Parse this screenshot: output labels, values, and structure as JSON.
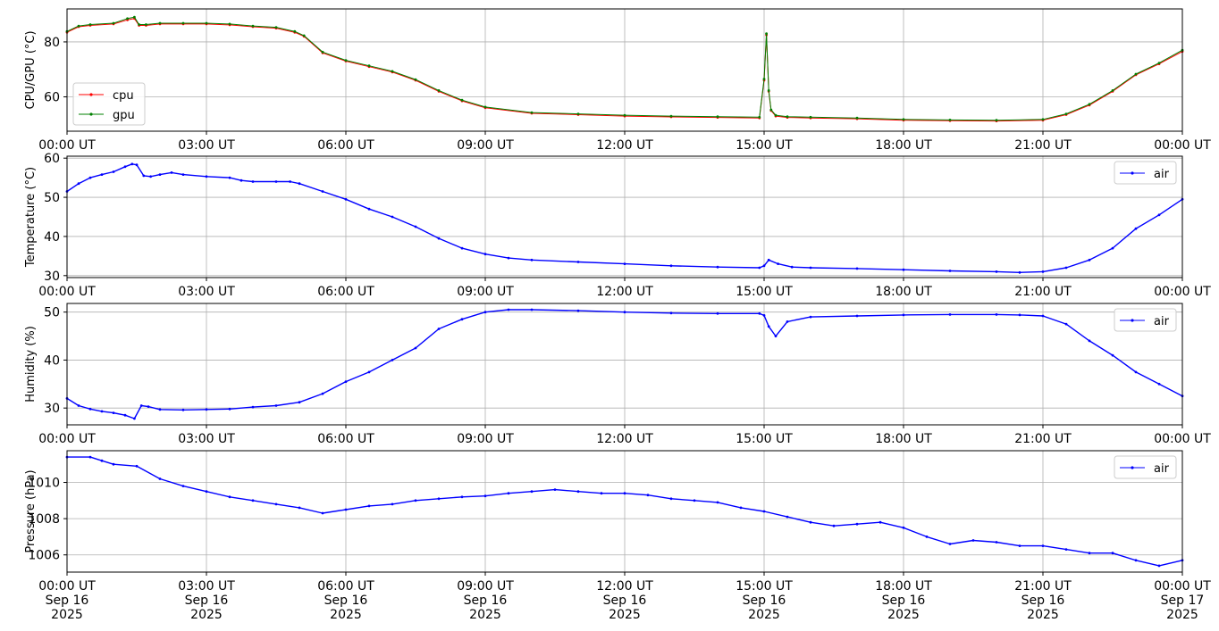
{
  "chart_data": [
    {
      "type": "line",
      "ylabel": "CPU/GPU (°C)",
      "ylim": [
        47.5,
        92
      ],
      "yticks": [
        60,
        80
      ],
      "x_range": [
        "2025-09-16 00:00 UT",
        "2025-09-17 00:00 UT"
      ],
      "xtick_labels": [
        "00:00 UT",
        "03:00 UT",
        "06:00 UT",
        "09:00 UT",
        "12:00 UT",
        "15:00 UT",
        "18:00 UT",
        "21:00 UT",
        "00:00 UT"
      ],
      "grid": true,
      "legend": "lower-left",
      "series": [
        {
          "name": "cpu",
          "color": "#ff0000",
          "x_hours": [
            0,
            0.25,
            0.5,
            1,
            1.3,
            1.45,
            1.55,
            1.7,
            2,
            2.5,
            3,
            3.5,
            4,
            4.5,
            4.9,
            5.1,
            5.5,
            6,
            6.5,
            7,
            7.5,
            8,
            8.5,
            9,
            10,
            11,
            12,
            13,
            14,
            14.9,
            15.0,
            15.05,
            15.1,
            15.15,
            15.25,
            15.5,
            16,
            17,
            18,
            19,
            20,
            21,
            21.5,
            22,
            22.5,
            23,
            23.5,
            24
          ],
          "values": [
            83.5,
            85.5,
            86,
            86.5,
            88,
            88.5,
            86,
            86,
            86.5,
            86.5,
            86.5,
            86.2,
            85.5,
            85,
            83.5,
            82,
            76,
            73,
            71,
            69,
            66,
            62,
            58.5,
            56,
            54,
            53.5,
            53,
            52.7,
            52.5,
            52.3,
            66,
            82.5,
            62,
            55,
            53,
            52.5,
            52.3,
            52,
            51.5,
            51.3,
            51.2,
            51.5,
            53.5,
            57,
            62,
            68,
            72,
            76.5
          ]
        },
        {
          "name": "gpu",
          "color": "#008000",
          "x_hours": [
            0,
            0.25,
            0.5,
            1,
            1.3,
            1.45,
            1.55,
            1.7,
            2,
            2.5,
            3,
            3.5,
            4,
            4.5,
            4.9,
            5.1,
            5.5,
            6,
            6.5,
            7,
            7.5,
            8,
            8.5,
            9,
            10,
            11,
            12,
            13,
            14,
            14.9,
            15.0,
            15.05,
            15.1,
            15.15,
            15.25,
            15.5,
            16,
            17,
            18,
            19,
            20,
            21,
            21.5,
            22,
            22.5,
            23,
            23.5,
            24
          ],
          "values": [
            83.8,
            85.8,
            86.3,
            86.8,
            88.5,
            89,
            86.3,
            86.3,
            86.8,
            86.8,
            86.8,
            86.5,
            85.8,
            85.3,
            83.8,
            82.3,
            76.3,
            73.3,
            71.3,
            69.3,
            66.3,
            62.3,
            58.8,
            56.3,
            54.3,
            53.8,
            53.3,
            53,
            52.8,
            52.6,
            66.5,
            83,
            62.3,
            55.3,
            53.3,
            52.8,
            52.6,
            52.3,
            51.8,
            51.6,
            51.5,
            51.8,
            53.8,
            57.3,
            62.3,
            68.3,
            72.3,
            77
          ]
        }
      ]
    },
    {
      "type": "line",
      "ylabel": "Temperature (°C)",
      "ylim": [
        29.5,
        60.5
      ],
      "yticks": [
        30,
        40,
        50,
        60
      ],
      "x_range": [
        "2025-09-16 00:00 UT",
        "2025-09-17 00:00 UT"
      ],
      "xtick_labels": [
        "00:00 UT",
        "03:00 UT",
        "06:00 UT",
        "09:00 UT",
        "12:00 UT",
        "15:00 UT",
        "18:00 UT",
        "21:00 UT",
        "00:00 UT"
      ],
      "grid": true,
      "legend": "upper-right",
      "series": [
        {
          "name": "air",
          "color": "#0000ff",
          "x_hours": [
            0,
            0.25,
            0.5,
            0.75,
            1,
            1.25,
            1.4,
            1.5,
            1.65,
            1.8,
            2,
            2.25,
            2.5,
            3,
            3.5,
            3.75,
            4,
            4.5,
            4.8,
            5,
            5.5,
            6,
            6.5,
            7,
            7.5,
            8,
            8.5,
            9,
            9.5,
            10,
            11,
            12,
            13,
            14,
            14.9,
            15.0,
            15.1,
            15.3,
            15.6,
            16,
            17,
            18,
            19,
            20,
            20.5,
            21,
            21.5,
            22,
            22.5,
            23,
            23.5,
            24
          ],
          "values": [
            51.5,
            53.5,
            55,
            55.8,
            56.5,
            57.8,
            58.5,
            58.3,
            55.5,
            55.3,
            55.8,
            56.3,
            55.8,
            55.3,
            55,
            54.3,
            54,
            54,
            54,
            53.5,
            51.5,
            49.5,
            47,
            45,
            42.5,
            39.5,
            37,
            35.5,
            34.5,
            34,
            33.5,
            33,
            32.5,
            32.2,
            32,
            32.5,
            34,
            33,
            32.2,
            32,
            31.8,
            31.5,
            31.2,
            31,
            30.8,
            31,
            32,
            34,
            37,
            42,
            45.5,
            49.5
          ]
        }
      ]
    },
    {
      "type": "line",
      "ylabel": "Humidity (%)",
      "ylim": [
        26.5,
        51.8
      ],
      "yticks": [
        30,
        40,
        50
      ],
      "x_range": [
        "2025-09-16 00:00 UT",
        "2025-09-17 00:00 UT"
      ],
      "xtick_labels": [
        "00:00 UT",
        "03:00 UT",
        "06:00 UT",
        "09:00 UT",
        "12:00 UT",
        "15:00 UT",
        "18:00 UT",
        "21:00 UT",
        "00:00 UT"
      ],
      "grid": true,
      "legend": "upper-right",
      "series": [
        {
          "name": "air",
          "color": "#0000ff",
          "x_hours": [
            0,
            0.25,
            0.5,
            0.75,
            1,
            1.25,
            1.45,
            1.6,
            1.75,
            2,
            2.5,
            3,
            3.5,
            4,
            4.5,
            5,
            5.5,
            6,
            6.5,
            7,
            7.5,
            8,
            8.5,
            9,
            9.5,
            10,
            11,
            12,
            13,
            14,
            14.9,
            15.0,
            15.1,
            15.25,
            15.5,
            16,
            17,
            18,
            19,
            20,
            20.5,
            21,
            21.5,
            22,
            22.5,
            23,
            23.5,
            24
          ],
          "values": [
            32,
            30.5,
            29.8,
            29.3,
            29,
            28.5,
            27.8,
            30.5,
            30.3,
            29.7,
            29.6,
            29.7,
            29.8,
            30.2,
            30.5,
            31.2,
            33,
            35.5,
            37.5,
            40,
            42.5,
            46.5,
            48.5,
            50,
            50.5,
            50.5,
            50.3,
            50,
            49.8,
            49.7,
            49.7,
            49.3,
            47,
            45,
            48,
            49,
            49.2,
            49.4,
            49.5,
            49.5,
            49.4,
            49.2,
            47.5,
            44,
            41,
            37.5,
            35,
            32.5
          ]
        }
      ]
    },
    {
      "type": "line",
      "ylabel": "Pressure (hPa)",
      "ylim": [
        1005.05,
        1011.75
      ],
      "yticks": [
        1006,
        1008,
        1010
      ],
      "x_range": [
        "2025-09-16 00:00 UT",
        "2025-09-17 00:00 UT"
      ],
      "xtick_labels": [
        "00:00 UT\nSep 16\n2025",
        "03:00 UT\nSep 16\n2025",
        "06:00 UT\nSep 16\n2025",
        "09:00 UT\nSep 16\n2025",
        "12:00 UT\nSep 16\n2025",
        "15:00 UT\nSep 16\n2025",
        "18:00 UT\nSep 16\n2025",
        "21:00 UT\nSep 16\n2025",
        "00:00 UT\nSep 17\n2025"
      ],
      "grid": true,
      "legend": "upper-right",
      "series": [
        {
          "name": "air",
          "color": "#0000ff",
          "x_hours": [
            0,
            0.5,
            0.75,
            1,
            1.5,
            2,
            2.5,
            3,
            3.5,
            4,
            4.5,
            5,
            5.5,
            6,
            6.5,
            7,
            7.5,
            8,
            8.5,
            9,
            9.5,
            10,
            10.5,
            11,
            11.5,
            12,
            12.5,
            13,
            13.5,
            14,
            14.5,
            15,
            15.5,
            16,
            16.5,
            17,
            17.5,
            18,
            18.5,
            19,
            19.5,
            20,
            20.5,
            21,
            21.5,
            22,
            22.5,
            23,
            23.5,
            24
          ],
          "values": [
            1011.4,
            1011.4,
            1011.2,
            1011,
            1010.9,
            1010.2,
            1009.8,
            1009.5,
            1009.2,
            1009,
            1008.8,
            1008.6,
            1008.3,
            1008.5,
            1008.7,
            1008.8,
            1009,
            1009.1,
            1009.2,
            1009.25,
            1009.4,
            1009.5,
            1009.6,
            1009.5,
            1009.4,
            1009.4,
            1009.3,
            1009.1,
            1009,
            1008.9,
            1008.6,
            1008.4,
            1008.1,
            1007.8,
            1007.6,
            1007.7,
            1007.8,
            1007.5,
            1007,
            1006.6,
            1006.8,
            1006.7,
            1006.5,
            1006.5,
            1006.3,
            1006.1,
            1006.1,
            1005.7,
            1005.4,
            1005.7
          ]
        }
      ]
    }
  ]
}
